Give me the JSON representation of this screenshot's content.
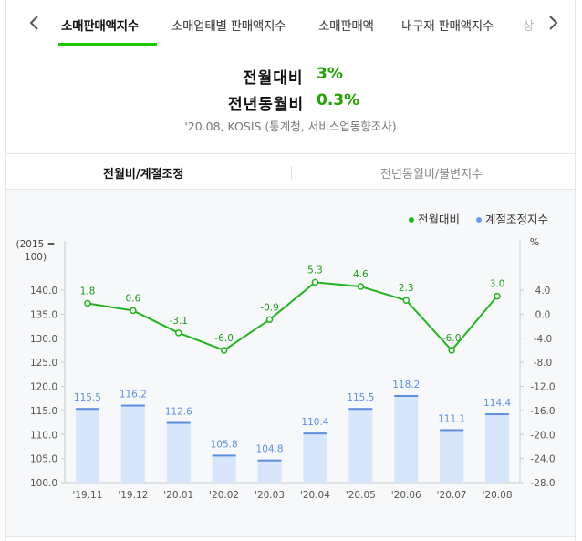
{
  "nav": {
    "prev_icon": "chevron-left-icon",
    "next_icon": "chevron-right-icon",
    "tabs": [
      {
        "label": "소매판매액지수",
        "active": true
      },
      {
        "label": "소매업태별 판매액지수",
        "active": false
      },
      {
        "label": "소매판매액",
        "active": false
      },
      {
        "label": "내구재 판매액지수",
        "active": false
      },
      {
        "label": "상",
        "active": false
      }
    ]
  },
  "summary": {
    "mom_label": "전월대비",
    "mom_value": "3%",
    "yoy_label": "전년동월비",
    "yoy_value": "0.3%",
    "source": "'20.08, KOSIS (통계청, 서비스업동향조사)"
  },
  "subtabs": [
    {
      "label": "전월비/계절조정",
      "active": true
    },
    {
      "label": "전년동월비/불변지수",
      "active": false
    }
  ],
  "colors": {
    "accent_green": "#1ec800",
    "line_green": "#21b51e",
    "bar_fill": "#d7e6fa",
    "bar_top": "#5c8fe0",
    "legend_blue": "#6c9be8"
  },
  "chart_data": {
    "type": "bar+line",
    "categories": [
      "'19.11",
      "'19.12",
      "'20.01",
      "'20.02",
      "'20.03",
      "'20.04",
      "'20.05",
      "'20.06",
      "'20.07",
      "'20.08"
    ],
    "series": [
      {
        "name": "전월대비",
        "type": "line",
        "axis": "right",
        "values": [
          1.8,
          0.6,
          -3.1,
          -6.0,
          -0.9,
          5.3,
          4.6,
          2.3,
          -6.0,
          3.0
        ],
        "labels": [
          "1.8",
          "0.6",
          "-3.1",
          "-6.0",
          "-0.9",
          "5.3",
          "4.6",
          "2.3",
          "-6.0",
          "3.0"
        ]
      },
      {
        "name": "계절조정지수",
        "type": "bar",
        "axis": "left",
        "values": [
          115.5,
          116.2,
          112.6,
          105.8,
          104.8,
          110.4,
          115.5,
          118.2,
          111.1,
          114.4
        ],
        "labels": [
          "115.5",
          "116.2",
          "112.6",
          "105.8",
          "104.8",
          "110.4",
          "115.5",
          "118.2",
          "111.1",
          "114.4"
        ]
      }
    ],
    "left_axis": {
      "unit_label": [
        "(2015 =",
        "100)"
      ],
      "ticks": [
        100,
        105,
        110,
        115,
        120,
        125,
        130,
        135,
        140
      ],
      "tick_labels": [
        "100.0",
        "105.0",
        "110.0",
        "115.0",
        "120.0",
        "125.0",
        "130.0",
        "135.0",
        "140.0"
      ],
      "ylim": [
        100,
        140
      ]
    },
    "right_axis": {
      "unit_label": "%",
      "ticks": [
        -28,
        -24,
        -20,
        -16,
        -12,
        -8,
        -4,
        0,
        4
      ],
      "tick_labels": [
        "-28.0",
        "-24.0",
        "-20.0",
        "-16.0",
        "-12.0",
        "-8.0",
        "-4.0",
        "0.0",
        "4.0"
      ],
      "ylim": [
        -28,
        4
      ]
    },
    "legend": {
      "position": "top-right"
    },
    "grid": false
  }
}
